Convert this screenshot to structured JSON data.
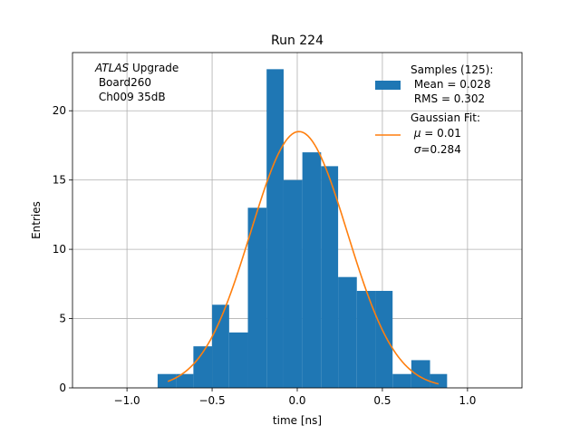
{
  "chart_data": {
    "type": "bar",
    "title": "Run 224",
    "xlabel": "time [ns]",
    "ylabel": "Entries",
    "xlim": [
      -1.32,
      1.32
    ],
    "ylim": [
      0,
      24.2
    ],
    "grid": true,
    "x_ticks": [
      -1.0,
      -0.5,
      0.0,
      0.5,
      1.0
    ],
    "x_tick_labels": [
      "−1.0",
      "−0.5",
      "0.0",
      "0.5",
      "1.0"
    ],
    "y_ticks": [
      0,
      5,
      10,
      15,
      20
    ],
    "y_tick_labels": [
      "0",
      "5",
      "10",
      "15",
      "20"
    ],
    "annotation": {
      "experiment": "ATLAS",
      "experiment_suffix": " Upgrade",
      "board": " Board260",
      "channel": " Ch009 35dB"
    },
    "histogram": {
      "name": "Samples",
      "color": "#1f77b4",
      "bins": [
        {
          "x0": -0.82,
          "x1": -0.71,
          "count": 1
        },
        {
          "x0": -0.71,
          "x1": -0.61,
          "count": 1
        },
        {
          "x0": -0.61,
          "x1": -0.5,
          "count": 3
        },
        {
          "x0": -0.5,
          "x1": -0.4,
          "count": 6
        },
        {
          "x0": -0.4,
          "x1": -0.29,
          "count": 4
        },
        {
          "x0": -0.29,
          "x1": -0.18,
          "count": 13
        },
        {
          "x0": -0.18,
          "x1": -0.08,
          "count": 23
        },
        {
          "x0": -0.08,
          "x1": 0.03,
          "count": 15
        },
        {
          "x0": 0.03,
          "x1": 0.14,
          "count": 17
        },
        {
          "x0": 0.14,
          "x1": 0.24,
          "count": 16
        },
        {
          "x0": 0.24,
          "x1": 0.35,
          "count": 8
        },
        {
          "x0": 0.35,
          "x1": 0.46,
          "count": 7
        },
        {
          "x0": 0.46,
          "x1": 0.56,
          "count": 7
        },
        {
          "x0": 0.56,
          "x1": 0.67,
          "count": 1
        },
        {
          "x0": 0.67,
          "x1": 0.78,
          "count": 2
        },
        {
          "x0": 0.78,
          "x1": 0.88,
          "count": 1
        }
      ]
    },
    "fit": {
      "name": "Gaussian Fit",
      "color": "#ff7f0e",
      "mu": 0.01,
      "sigma": 0.284,
      "amplitude": 18.5,
      "x_range": [
        -0.76,
        0.83
      ]
    },
    "legend": {
      "position": "top-right",
      "samples_line1": "Samples (125):",
      "samples_line2": " Mean = 0.028",
      "samples_line3": " RMS = 0.302",
      "fit_line1": "Gaussian Fit:",
      "fit_line2_prefix": " μ",
      "fit_line2_value": " = 0.01",
      "fit_line3_prefix": " σ",
      "fit_line3_value": "=0.284"
    }
  }
}
